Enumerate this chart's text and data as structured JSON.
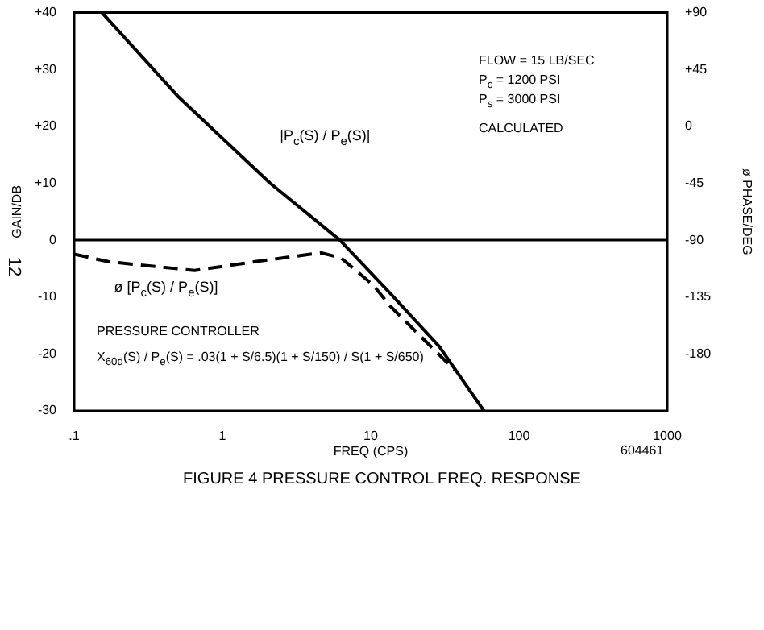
{
  "chart_data": {
    "type": "line",
    "title": "FIGURE 4   PRESSURE CONTROL FREQ. RESPONSE",
    "xlabel": "FREQ (CPS)",
    "ylabel": "GAIN/DB",
    "y2label": "ø PHASE/DEG",
    "log": "x",
    "grid": false,
    "legend": false,
    "marker": "none",
    "xlim": [
      0.1,
      1000
    ],
    "xticks": [
      {
        "value": 0.1,
        "label": ".1"
      },
      1,
      10,
      100,
      1000
    ],
    "ylim": [
      -30,
      40
    ],
    "yticks": [
      {
        "value": 40,
        "label": "+40"
      },
      {
        "value": 30,
        "label": "+30"
      },
      {
        "value": 20,
        "label": "+20"
      },
      {
        "value": 10,
        "label": "+10"
      },
      0,
      -10,
      -20,
      -30
    ],
    "y2lim": [
      -225,
      90
    ],
    "y2ticks": [
      {
        "value": 90,
        "label": "+90"
      },
      {
        "value": 45,
        "label": "+45"
      },
      0,
      -45,
      -90,
      -135,
      -180
    ],
    "ref_lines": [
      {
        "axis": "y",
        "value": 0,
        "color": "#000000",
        "line_style": "solid"
      }
    ],
    "series": [
      {
        "name": "|P$_{c}$(S) / P$_{e}$(S)|",
        "color": "#000000",
        "line_style": "solid",
        "axis": "y",
        "x": [
          0.154,
          0.5,
          2.1,
          6.2,
          13.5,
          29,
          58
        ],
        "values": [
          40,
          25.3,
          10,
          0,
          -9.3,
          -18.7,
          -30
        ]
      },
      {
        "name": "ø [P$_{c}$(S) / P$_{e}$(S)]",
        "color": "#000000",
        "line_style": "dashed",
        "axis": "y2",
        "x": [
          0.1,
          0.17,
          0.65,
          1.66,
          4.6,
          6.3,
          10.5,
          13.5,
          37
        ],
        "values": [
          -101,
          -107,
          -114,
          -107,
          -100,
          -104,
          -126,
          -142,
          -193
        ]
      }
    ],
    "annotations": [
      "FLOW = 15 LB/SEC",
      "P$_{c}$   = 1200 PSI",
      "P$_{s}$   = 3000 PSI",
      "CALCULATED",
      "PRESSURE CONTROLLER",
      "X$_{60d}$(S) / P$_{e}$(S)  =  .03(1 + S/6.5)(1 + S/150) / S(1 + S/650)",
      "604461",
      "12"
    ]
  }
}
